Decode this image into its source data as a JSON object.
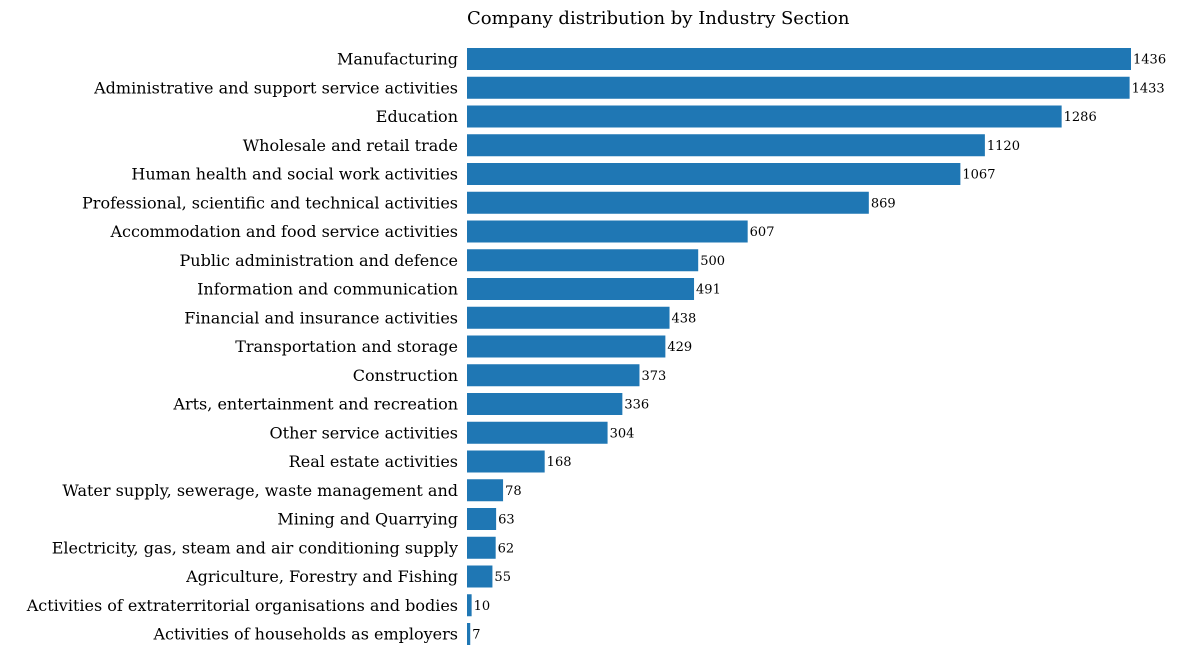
{
  "chart_data": {
    "type": "bar",
    "orientation": "horizontal",
    "title": "Company distribution by Industry Section",
    "xlabel": "",
    "ylabel": "",
    "grid": false,
    "bar_color": "#1f77b4",
    "xlim": [
      0,
      1436
    ],
    "categories": [
      "Manufacturing",
      "Administrative and support service activities",
      "Education",
      "Wholesale and retail trade",
      "Human health and social work activities",
      "Professional, scientific and technical activities",
      "Accommodation and food service activities",
      "Public administration and defence",
      "Information and communication",
      "Financial and insurance activities",
      "Transportation and storage",
      "Construction",
      "Arts, entertainment and recreation",
      "Other service activities",
      "Real estate activities",
      "Water supply, sewerage, waste management and",
      "Mining and Quarrying",
      "Electricity, gas, steam and air conditioning supply",
      "Agriculture, Forestry and Fishing",
      "Activities of extraterritorial organisations and bodies",
      "Activities of households as employers"
    ],
    "values": [
      1436,
      1433,
      1286,
      1120,
      1067,
      869,
      607,
      500,
      491,
      438,
      429,
      373,
      336,
      304,
      168,
      78,
      63,
      62,
      55,
      10,
      7
    ]
  }
}
